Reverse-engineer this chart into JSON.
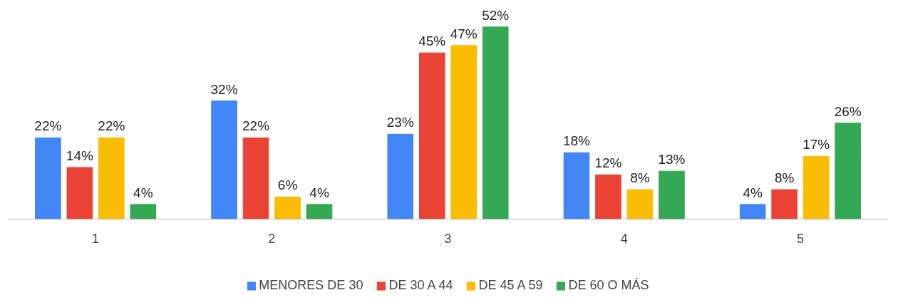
{
  "chart_data": {
    "type": "bar",
    "categories": [
      "1",
      "2",
      "3",
      "4",
      "5"
    ],
    "series": [
      {
        "name": "MENORES DE 30",
        "color": "#4285f4",
        "values": [
          22,
          32,
          23,
          18,
          4
        ],
        "value_labels": [
          "22%",
          "32%",
          "23%",
          "18%",
          "4%"
        ]
      },
      {
        "name": "DE 30 A 44",
        "color": "#ea4335",
        "values": [
          14,
          22,
          45,
          12,
          8
        ],
        "value_labels": [
          "14%",
          "22%",
          "45%",
          "12%",
          "8%"
        ]
      },
      {
        "name": "DE 45 A 59",
        "color": "#fbbc04",
        "values": [
          22,
          6,
          47,
          8,
          17
        ],
        "value_labels": [
          "22%",
          "6%",
          "47%",
          "8%",
          "17%"
        ]
      },
      {
        "name": "DE 60 O MÁS",
        "color": "#34a853",
        "values": [
          4,
          4,
          52,
          13,
          26
        ],
        "value_labels": [
          "4%",
          "4%",
          "52%",
          "13%",
          "26%"
        ]
      }
    ],
    "legend": "bottom",
    "grid": false
  }
}
